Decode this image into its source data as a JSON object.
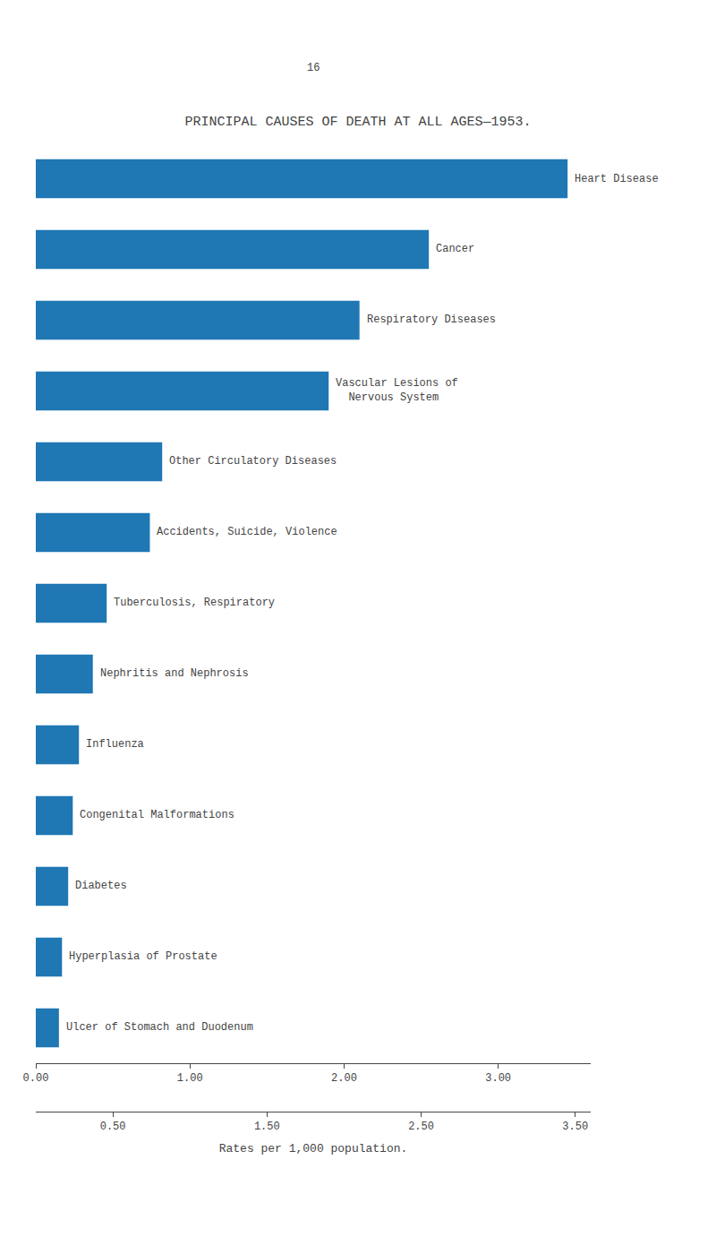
{
  "chart_data": {
    "type": "bar",
    "orientation": "horizontal",
    "title": "PRINCIPAL CAUSES OF DEATH AT ALL AGES—1953.",
    "annotations": [
      "16"
    ],
    "xlabel": "Rates per 1,000 population.",
    "categories": [
      "Heart Disease",
      "Cancer",
      "Respiratory Diseases",
      "Vascular Lesions of\n  Nervous System",
      "Other Circulatory Diseases",
      "Accidents, Suicide, Violence",
      "Tuberculosis, Respiratory",
      "Nephritis and Nephrosis",
      "Influenza",
      "Congenital Malformations",
      "Diabetes",
      "Hyperplasia of Prostate",
      "Ulcer of Stomach and Duodenum"
    ],
    "values": [
      3.45,
      2.55,
      2.1,
      1.9,
      0.82,
      0.74,
      0.46,
      0.37,
      0.28,
      0.24,
      0.21,
      0.17,
      0.15
    ],
    "xlim": [
      0.0,
      3.6
    ],
    "xticks": [
      {
        "value": 0.0,
        "label": "0.00"
      },
      {
        "value": 1.0,
        "label": "1.00"
      },
      {
        "value": 2.0,
        "label": "2.00"
      },
      {
        "value": 3.0,
        "label": "3.00"
      }
    ],
    "x2lim": [
      0.0,
      3.6
    ],
    "x2ticks": [
      {
        "value": 0.5,
        "label": "0.50"
      },
      {
        "value": 1.5,
        "label": "1.50"
      },
      {
        "value": 2.5,
        "label": "2.50"
      },
      {
        "value": 3.5,
        "label": "3.50"
      }
    ],
    "grid": false
  }
}
